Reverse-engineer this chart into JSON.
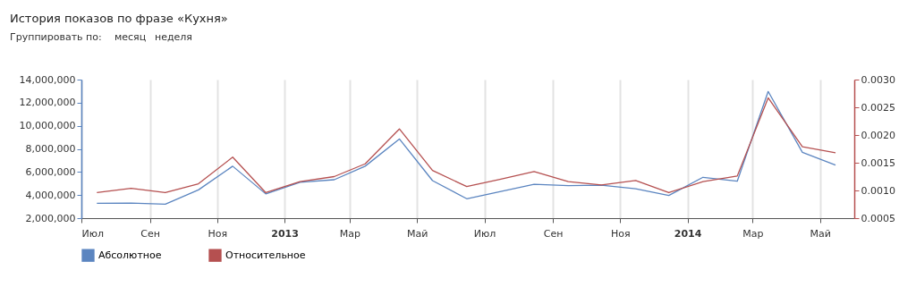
{
  "chart_data": {
    "type": "line",
    "title": "История показов по фразе «Кухня»",
    "annotations": [
      "Группировать по:",
      "месяц",
      "неделя"
    ],
    "x": [
      "2012-07-15",
      "2012-08-15",
      "2012-09-15",
      "2012-10-15",
      "2012-11-15",
      "2012-12-15",
      "2013-01-15",
      "2013-02-15",
      "2013-03-15",
      "2013-04-15",
      "2013-05-15",
      "2013-06-15",
      "2013-07-15",
      "2013-08-15",
      "2013-09-15",
      "2013-10-15",
      "2013-11-15",
      "2013-12-15",
      "2014-01-15",
      "2014-02-15",
      "2014-03-15",
      "2014-04-15",
      "2014-05-15"
    ],
    "xlim": [
      "2012-07-01",
      "2014-06-01"
    ],
    "xticks": [
      {
        "value": "2012-07-01",
        "label": "Июл"
      },
      {
        "value": "2012-09-01",
        "label": "Сен"
      },
      {
        "value": "2012-11-01",
        "label": "Ноя"
      },
      {
        "value": "2013-01-01",
        "label": "2013"
      },
      {
        "value": "2013-03-01",
        "label": "Мар"
      },
      {
        "value": "2013-05-01",
        "label": "Май"
      },
      {
        "value": "2013-07-01",
        "label": "Июл"
      },
      {
        "value": "2013-09-01",
        "label": "Сен"
      },
      {
        "value": "2013-11-01",
        "label": "Ноя"
      },
      {
        "value": "2014-01-01",
        "label": "2014"
      },
      {
        "value": "2014-03-01",
        "label": "Мар"
      },
      {
        "value": "2014-05-01",
        "label": "Май"
      }
    ],
    "ylim": [
      2000000,
      14000000
    ],
    "yticks": [
      {
        "value": 2000000,
        "label": "2,000,000"
      },
      {
        "value": 4000000,
        "label": "4,000,000"
      },
      {
        "value": 6000000,
        "label": "6,000,000"
      },
      {
        "value": 8000000,
        "label": "8,000,000"
      },
      {
        "value": 10000000,
        "label": "10,000,000"
      },
      {
        "value": 12000000,
        "label": "12,000,000"
      },
      {
        "value": 14000000,
        "label": "14,000,000"
      }
    ],
    "y2lim": [
      0.0005,
      0.003
    ],
    "y2ticks": [
      {
        "value": 0.0005,
        "label": "0.0005"
      },
      {
        "value": 0.001,
        "label": "0.0010"
      },
      {
        "value": 0.0015,
        "label": "0.0015"
      },
      {
        "value": 0.002,
        "label": "0.0020"
      },
      {
        "value": 0.0025,
        "label": "0.0025"
      },
      {
        "value": 0.003,
        "label": "0.0030"
      }
    ],
    "series": [
      {
        "name": "Абсолютное",
        "color": "#5b85c0",
        "values": [
          3290000,
          3300000,
          3210000,
          4450000,
          6500000,
          4100000,
          5100000,
          5330000,
          6500000,
          8860000,
          5250000,
          3680000,
          4300000,
          4940000,
          4810000,
          4860000,
          4550000,
          3960000,
          5540000,
          5200000,
          12970000,
          7700000,
          6600000
        ]
      },
      {
        "name": "Относительное",
        "color": "#b55050",
        "axis": "y2",
        "values": [
          0.00096,
          0.00104,
          0.00096,
          0.00112,
          0.0016,
          0.00096,
          0.00116,
          0.00125,
          0.00148,
          0.00211,
          0.00136,
          0.00107,
          0.0012,
          0.00134,
          0.00116,
          0.0011,
          0.00118,
          0.00096,
          0.00116,
          0.00126,
          0.00267,
          0.00179,
          0.00168
        ]
      }
    ],
    "grid": "x",
    "legend": "bottom left",
    "marker": "none",
    "line_style": "solid"
  }
}
